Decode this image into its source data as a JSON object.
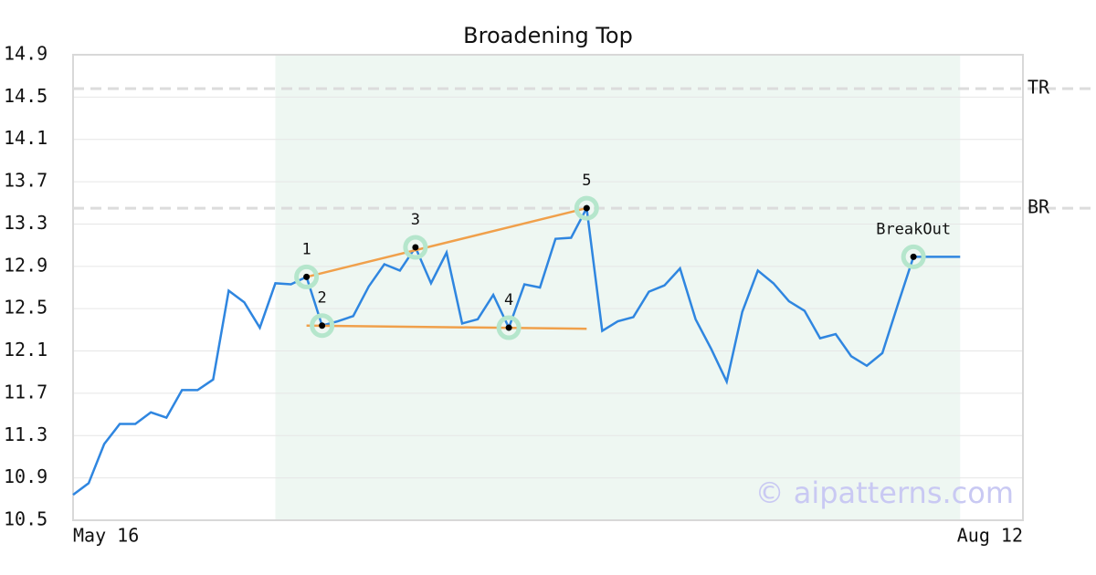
{
  "chart_data": {
    "type": "line",
    "title": "Broadening Top",
    "categories": [
      "May 16",
      null,
      null,
      null,
      null,
      null,
      null,
      null,
      null,
      null,
      null,
      null,
      null,
      null,
      null,
      null,
      null,
      null,
      null,
      null,
      null,
      null,
      null,
      null,
      null,
      null,
      null,
      null,
      null,
      null,
      null,
      null,
      null,
      null,
      null,
      null,
      null,
      null,
      null,
      null,
      null,
      null,
      null,
      null,
      null,
      null,
      null,
      null,
      null,
      null,
      null,
      null,
      null,
      null,
      null,
      null,
      null,
      "Aug 12"
    ],
    "series": [
      {
        "color": "#2f86e0",
        "values": [
          10.74,
          10.85,
          11.22,
          11.41,
          11.41,
          11.52,
          11.47,
          11.73,
          11.73,
          11.83,
          12.67,
          12.56,
          12.32,
          12.74,
          12.73,
          12.8,
          12.34,
          12.38,
          12.43,
          12.71,
          12.92,
          12.86,
          13.08,
          12.74,
          13.03,
          12.36,
          12.4,
          12.63,
          12.32,
          12.73,
          12.7,
          13.16,
          13.17,
          13.45,
          12.29,
          12.38,
          12.42,
          12.66,
          12.72,
          12.88,
          12.4,
          12.12,
          11.81,
          12.47,
          12.86,
          12.74,
          12.57,
          12.48,
          12.22,
          12.26,
          12.05,
          11.96,
          12.08,
          12.54,
          12.99,
          12.99,
          12.99,
          12.99
        ]
      }
    ],
    "ylim": [
      10.5,
      14.9
    ],
    "yticks": [
      10.5,
      10.9,
      11.3,
      11.7,
      12.1,
      12.5,
      12.9,
      13.3,
      13.7,
      14.1,
      14.5,
      14.9
    ],
    "grid": true,
    "reference_lines": [
      {
        "label": "TR",
        "value": 14.58
      },
      {
        "label": "BR",
        "value": 13.45
      }
    ],
    "annotations": [
      {
        "label": "1",
        "index": 15,
        "value": 12.8
      },
      {
        "label": "2",
        "index": 16,
        "value": 12.34
      },
      {
        "label": "3",
        "index": 22,
        "value": 13.08
      },
      {
        "label": "4",
        "index": 28,
        "value": 12.32
      },
      {
        "label": "5",
        "index": 33,
        "value": 13.45
      },
      {
        "label": "BreakOut",
        "index": 54,
        "value": 12.99
      }
    ],
    "trendlines": [
      {
        "color": "#f0a04b",
        "x": [
          15,
          33
        ],
        "values": [
          12.8,
          13.45
        ]
      },
      {
        "color": "#f0a04b",
        "x": [
          15,
          33
        ],
        "values": [
          12.34,
          12.31
        ]
      }
    ],
    "watermark": "© aipatterns.com"
  }
}
